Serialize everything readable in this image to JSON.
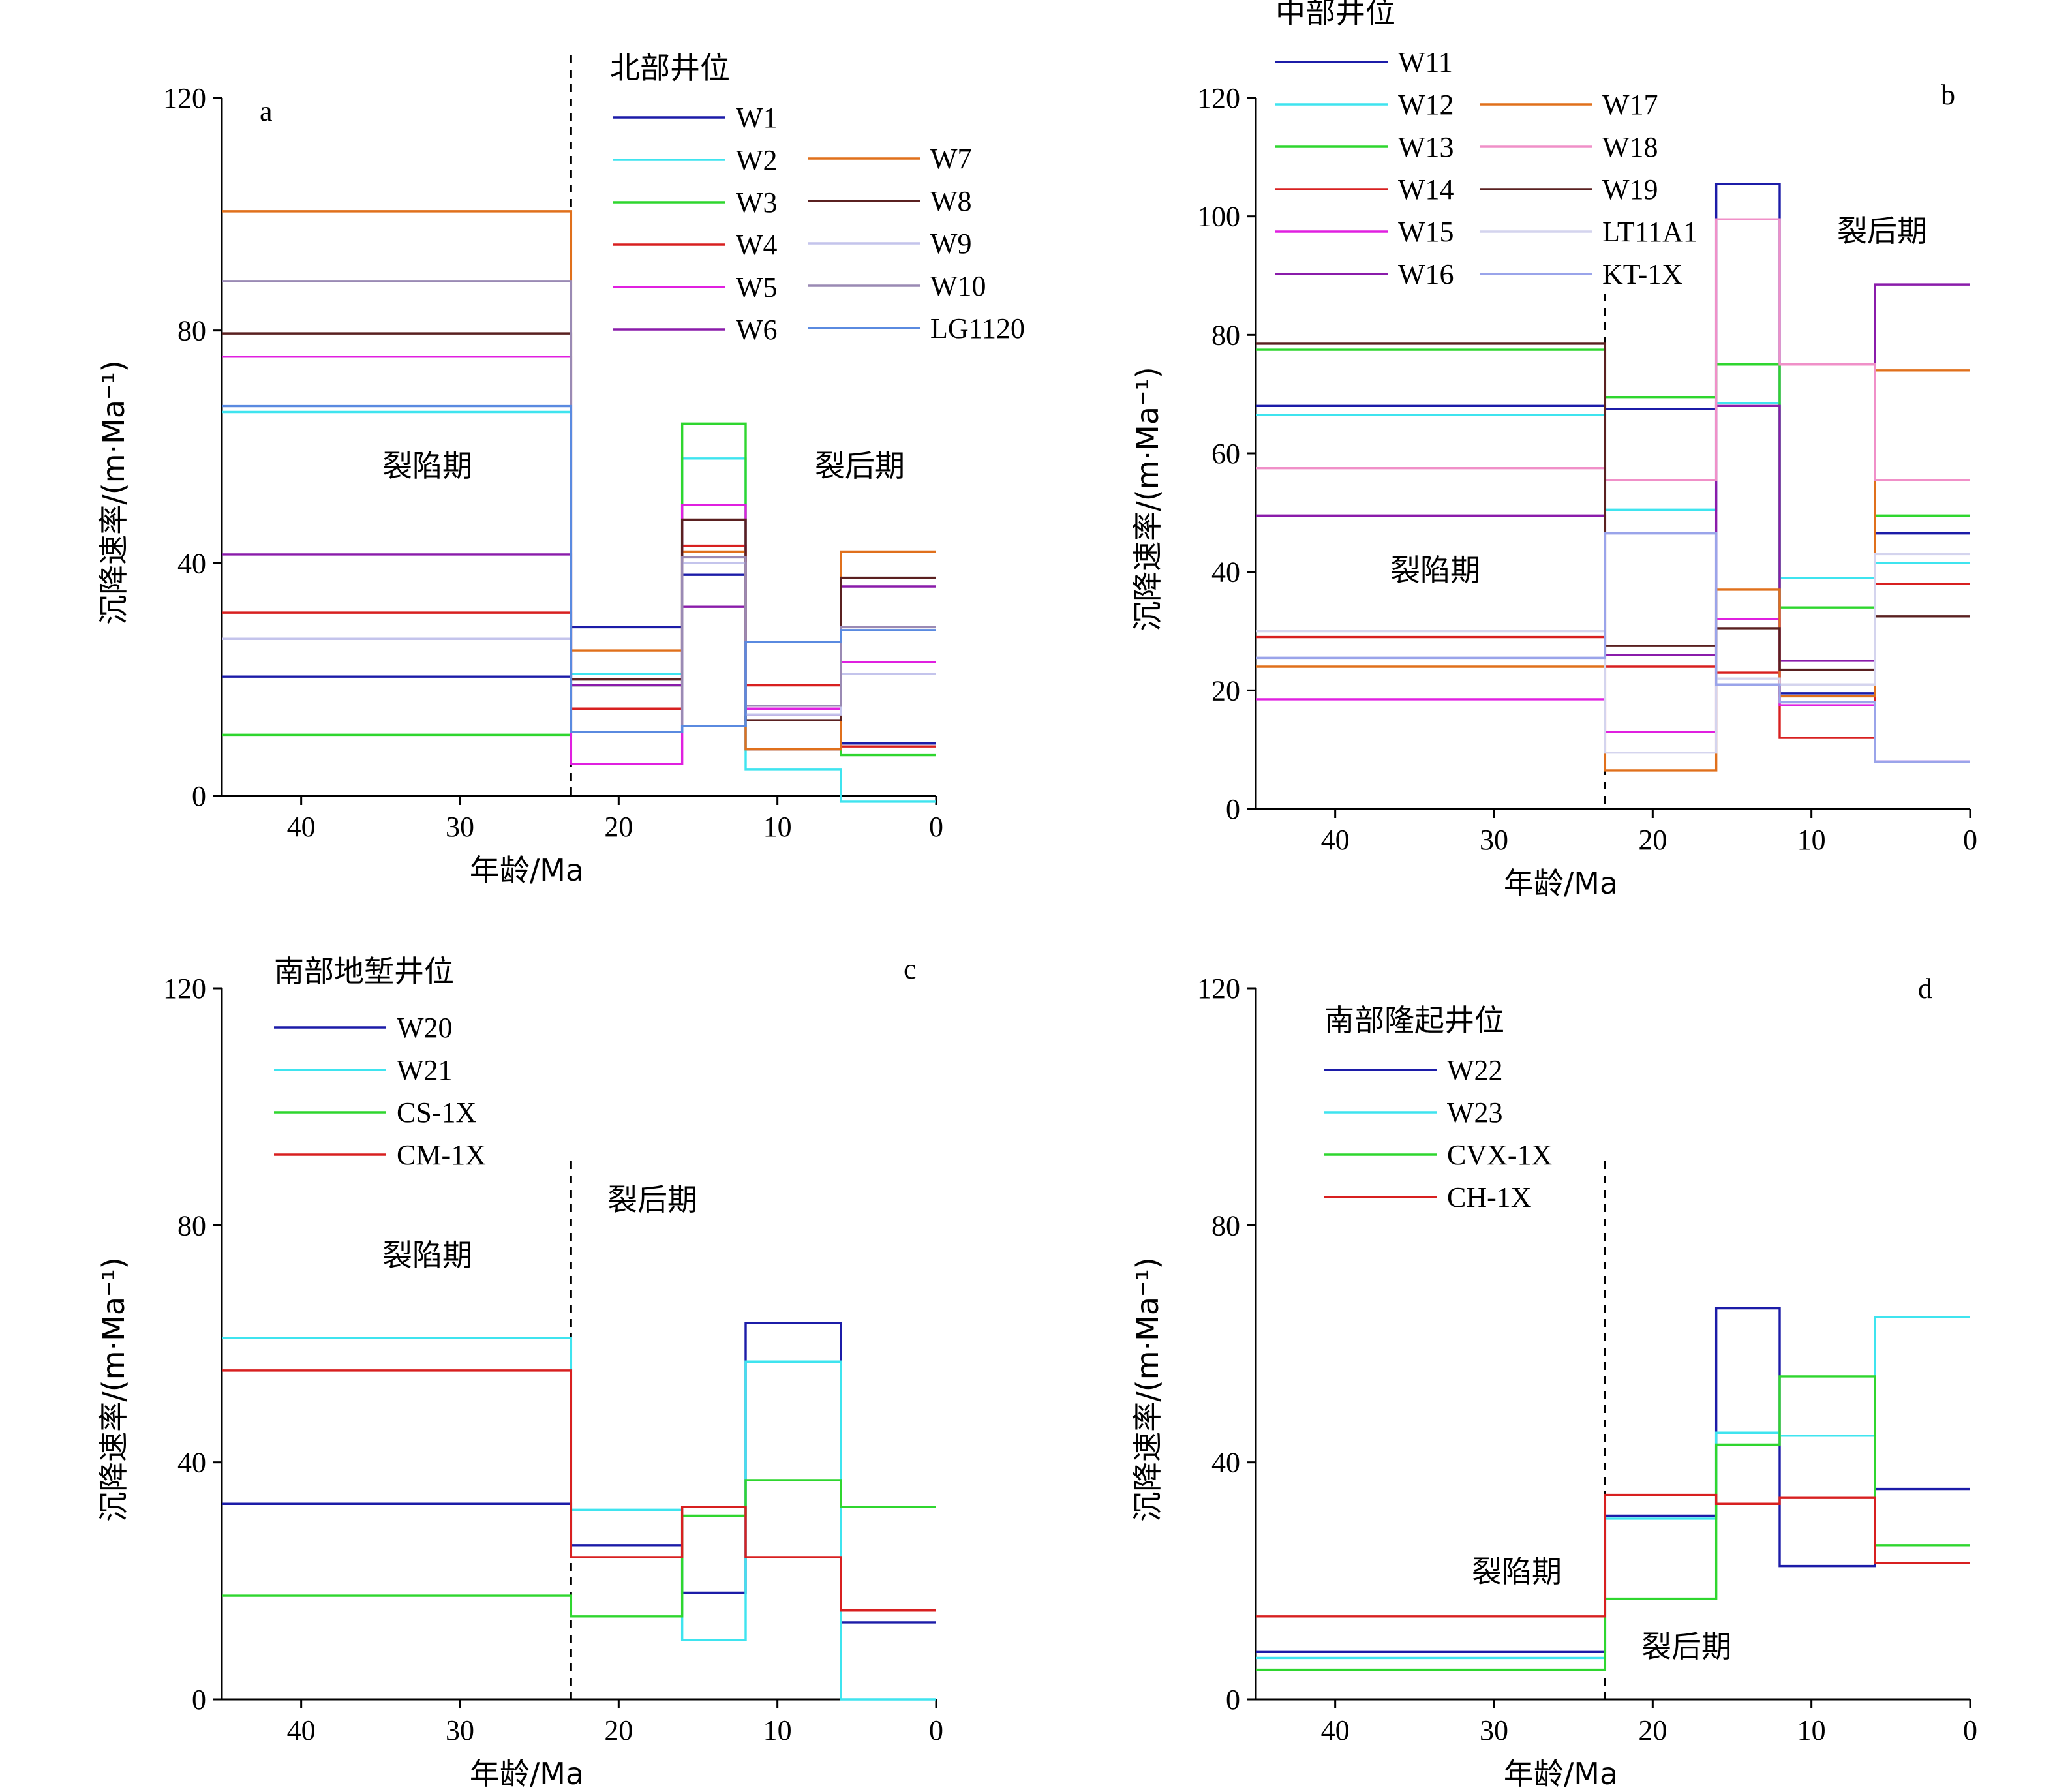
{
  "colors": {
    "navy": "#1c1ca8",
    "cyan": "#3fe4ef",
    "green": "#2fd62f",
    "red": "#d82020",
    "magenta": "#e020e0",
    "purple": "#8a1caa",
    "orange": "#e0701c",
    "brown": "#5a2020",
    "lavender": "#c4c4ec",
    "gray_purple": "#9a8ab4",
    "steel": "#5a8ae0",
    "pink": "#f090c8",
    "light_lavender": "#d4d4ee",
    "periwinkle": "#9aa4ea"
  },
  "chart_data": [
    {
      "panel": "a",
      "type": "line",
      "step": true,
      "legend_title": "北部井位",
      "xlabel": "年龄/Ma",
      "ylabel": "沉降速率/(m·Ma⁻¹)",
      "xlim": [
        45,
        0
      ],
      "ylim": [
        0,
        120
      ],
      "x_ticks": [
        "40",
        "30",
        "20",
        "10",
        "0"
      ],
      "y_ticks": [
        "0",
        "40",
        "80",
        "120"
      ],
      "divider_x": 23,
      "phase_labels": [
        "裂陷期",
        "裂后期"
      ],
      "x_edges": [
        45,
        23,
        16,
        12,
        6,
        0
      ],
      "series": [
        {
          "name": "W1",
          "color": "navy",
          "values": [
            20.5,
            29,
            38,
            8,
            9
          ]
        },
        {
          "name": "W2",
          "color": "cyan",
          "values": [
            66,
            21,
            58,
            4.5,
            -1
          ]
        },
        {
          "name": "W3",
          "color": "green",
          "values": [
            10.5,
            19,
            64,
            15,
            7
          ]
        },
        {
          "name": "W4",
          "color": "red",
          "values": [
            31.5,
            15,
            43,
            19,
            8.5
          ]
        },
        {
          "name": "W5",
          "color": "magenta",
          "values": [
            75.5,
            5.5,
            50,
            15,
            23
          ]
        },
        {
          "name": "W6",
          "color": "purple",
          "values": [
            41.5,
            19,
            32.5,
            14,
            36
          ]
        },
        {
          "name": "W7",
          "color": "orange",
          "values": [
            100.5,
            25,
            42,
            8,
            42
          ]
        },
        {
          "name": "W8",
          "color": "brown",
          "values": [
            79.5,
            20,
            47.5,
            13,
            37.5
          ]
        },
        {
          "name": "W9",
          "color": "lavender",
          "values": [
            27,
            11,
            40,
            14,
            21
          ]
        },
        {
          "name": "W10",
          "color": "gray_purple",
          "values": [
            88.5,
            11,
            41,
            15.5,
            29
          ]
        },
        {
          "name": "LG1120",
          "color": "steel",
          "values": [
            67,
            11,
            12,
            26.5,
            28.5
          ]
        }
      ]
    },
    {
      "panel": "b",
      "type": "line",
      "step": true,
      "legend_title": "中部井位",
      "xlabel": "年龄/Ma",
      "ylabel": "沉降速率/(m·Ma⁻¹)",
      "xlim": [
        45,
        0
      ],
      "ylim": [
        0,
        120
      ],
      "x_ticks": [
        "40",
        "30",
        "20",
        "10",
        "0"
      ],
      "y_ticks": [
        "0",
        "20",
        "40",
        "60",
        "80",
        "100",
        "120"
      ],
      "divider_x": 23,
      "phase_labels": [
        "裂陷期",
        "裂后期"
      ],
      "x_edges": [
        45,
        23,
        16,
        12,
        6,
        0
      ],
      "series": [
        {
          "name": "W11",
          "color": "navy",
          "values": [
            68,
            67.5,
            105.5,
            19.5,
            46.5
          ]
        },
        {
          "name": "W12",
          "color": "cyan",
          "values": [
            66.5,
            50.5,
            68.5,
            39,
            41.5
          ]
        },
        {
          "name": "W13",
          "color": "green",
          "values": [
            77.5,
            69.5,
            75,
            34,
            49.5
          ]
        },
        {
          "name": "W14",
          "color": "red",
          "values": [
            29,
            24,
            23,
            12,
            38
          ]
        },
        {
          "name": "W15",
          "color": "magenta",
          "values": [
            18.5,
            13,
            32,
            17.5,
            8
          ]
        },
        {
          "name": "W16",
          "color": "purple",
          "values": [
            49.5,
            26,
            68,
            25,
            88.5
          ]
        },
        {
          "name": "W17",
          "color": "orange",
          "values": [
            24,
            6.5,
            37,
            19,
            74
          ]
        },
        {
          "name": "W18",
          "color": "pink",
          "values": [
            57.5,
            55.5,
            99.5,
            75,
            55.5
          ]
        },
        {
          "name": "W19",
          "color": "brown",
          "values": [
            78.5,
            27.5,
            30.5,
            23.5,
            32.5
          ]
        },
        {
          "name": "LT11A1",
          "color": "light_lavender",
          "values": [
            30,
            9.5,
            22,
            21,
            43
          ]
        },
        {
          "name": "KT-1X",
          "color": "periwinkle",
          "values": [
            25.5,
            46.5,
            21,
            18,
            8
          ]
        }
      ]
    },
    {
      "panel": "c",
      "type": "line",
      "step": true,
      "legend_title": "南部地堑井位",
      "xlabel": "年龄/Ma",
      "ylabel": "沉降速率/(m·Ma⁻¹)",
      "xlim": [
        45,
        0
      ],
      "ylim": [
        0,
        120
      ],
      "x_ticks": [
        "40",
        "30",
        "20",
        "10",
        "0"
      ],
      "y_ticks": [
        "0",
        "40",
        "80",
        "120"
      ],
      "divider_x": 23,
      "phase_labels": [
        "裂陷期",
        "裂后期"
      ],
      "x_edges": [
        45,
        23,
        16,
        12,
        6,
        0
      ],
      "series": [
        {
          "name": "W20",
          "color": "navy",
          "values": [
            33,
            26,
            18,
            63.5,
            13
          ]
        },
        {
          "name": "W21",
          "color": "cyan",
          "values": [
            61,
            32,
            10,
            57,
            0
          ]
        },
        {
          "name": "CS-1X",
          "color": "green",
          "values": [
            17.5,
            14,
            31,
            37,
            32.5
          ]
        },
        {
          "name": "CM-1X",
          "color": "red",
          "values": [
            55.5,
            24,
            32.5,
            24,
            15
          ]
        }
      ]
    },
    {
      "panel": "d",
      "type": "line",
      "step": true,
      "legend_title": "南部隆起井位",
      "xlabel": "年龄/Ma",
      "ylabel": "沉降速率/(m·Ma⁻¹)",
      "xlim": [
        45,
        0
      ],
      "ylim": [
        0,
        120
      ],
      "x_ticks": [
        "40",
        "30",
        "20",
        "10",
        "0"
      ],
      "y_ticks": [
        "0",
        "40",
        "80",
        "120"
      ],
      "divider_x": 23,
      "phase_labels": [
        "裂陷期",
        "裂后期"
      ],
      "x_edges": [
        45,
        23,
        16,
        12,
        6,
        0
      ],
      "series": [
        {
          "name": "W22",
          "color": "navy",
          "values": [
            8,
            31,
            66,
            22.5,
            35.5
          ]
        },
        {
          "name": "W23",
          "color": "cyan",
          "values": [
            7,
            30.5,
            45,
            44.5,
            64.5
          ]
        },
        {
          "name": "CVX-1X",
          "color": "green",
          "values": [
            5,
            17,
            43,
            54.5,
            26
          ]
        },
        {
          "name": "CH-1X",
          "color": "red",
          "values": [
            14,
            34.5,
            33,
            34,
            23
          ]
        }
      ]
    }
  ]
}
